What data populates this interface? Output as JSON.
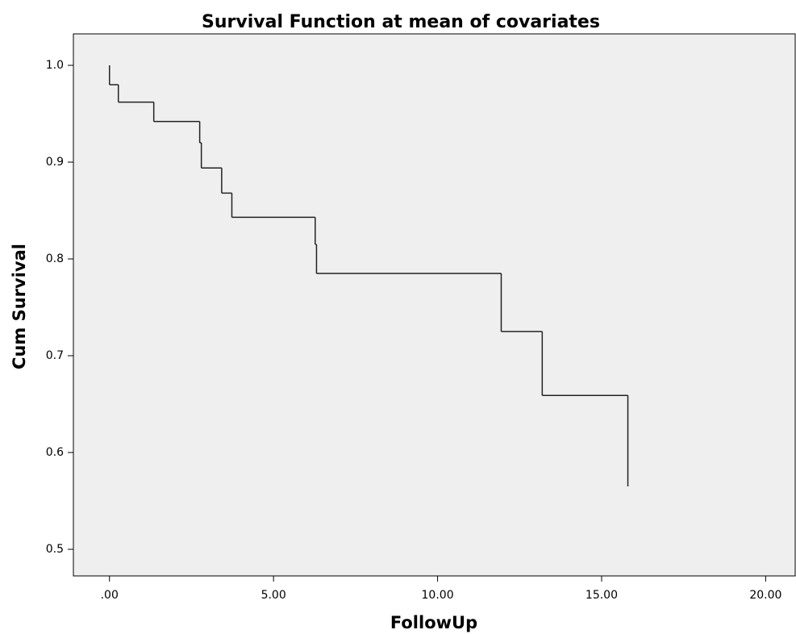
{
  "chart_data": {
    "type": "line",
    "step": "post",
    "title": "Survival Function at mean of covariates",
    "x_label": "FollowUp",
    "y_label": "Cum Survival",
    "x": [
      0,
      0,
      0.27,
      1.35,
      2.75,
      2.8,
      3.42,
      3.73,
      6.27,
      6.31,
      11.94,
      13.19,
      15.8
    ],
    "values": [
      1.0,
      0.98,
      0.962,
      0.942,
      0.92,
      0.894,
      0.868,
      0.843,
      0.815,
      0.785,
      0.725,
      0.659,
      0.565
    ],
    "color": "#222222",
    "xlim": [
      -1.1,
      20.9
    ],
    "ylim": [
      0.4725,
      1.0325
    ],
    "xticks": [
      {
        "value": 0,
        "label": ".00"
      },
      {
        "value": 5,
        "label": "5.00"
      },
      {
        "value": 10,
        "label": "10.00"
      },
      {
        "value": 15,
        "label": "15.00"
      },
      {
        "value": 20,
        "label": "20.00"
      }
    ],
    "yticks": [
      0.5,
      0.6,
      0.7,
      0.8,
      0.9,
      {
        "value": 1.0,
        "label": "1.0"
      }
    ],
    "plot_background": "#efefef",
    "grid": false
  }
}
